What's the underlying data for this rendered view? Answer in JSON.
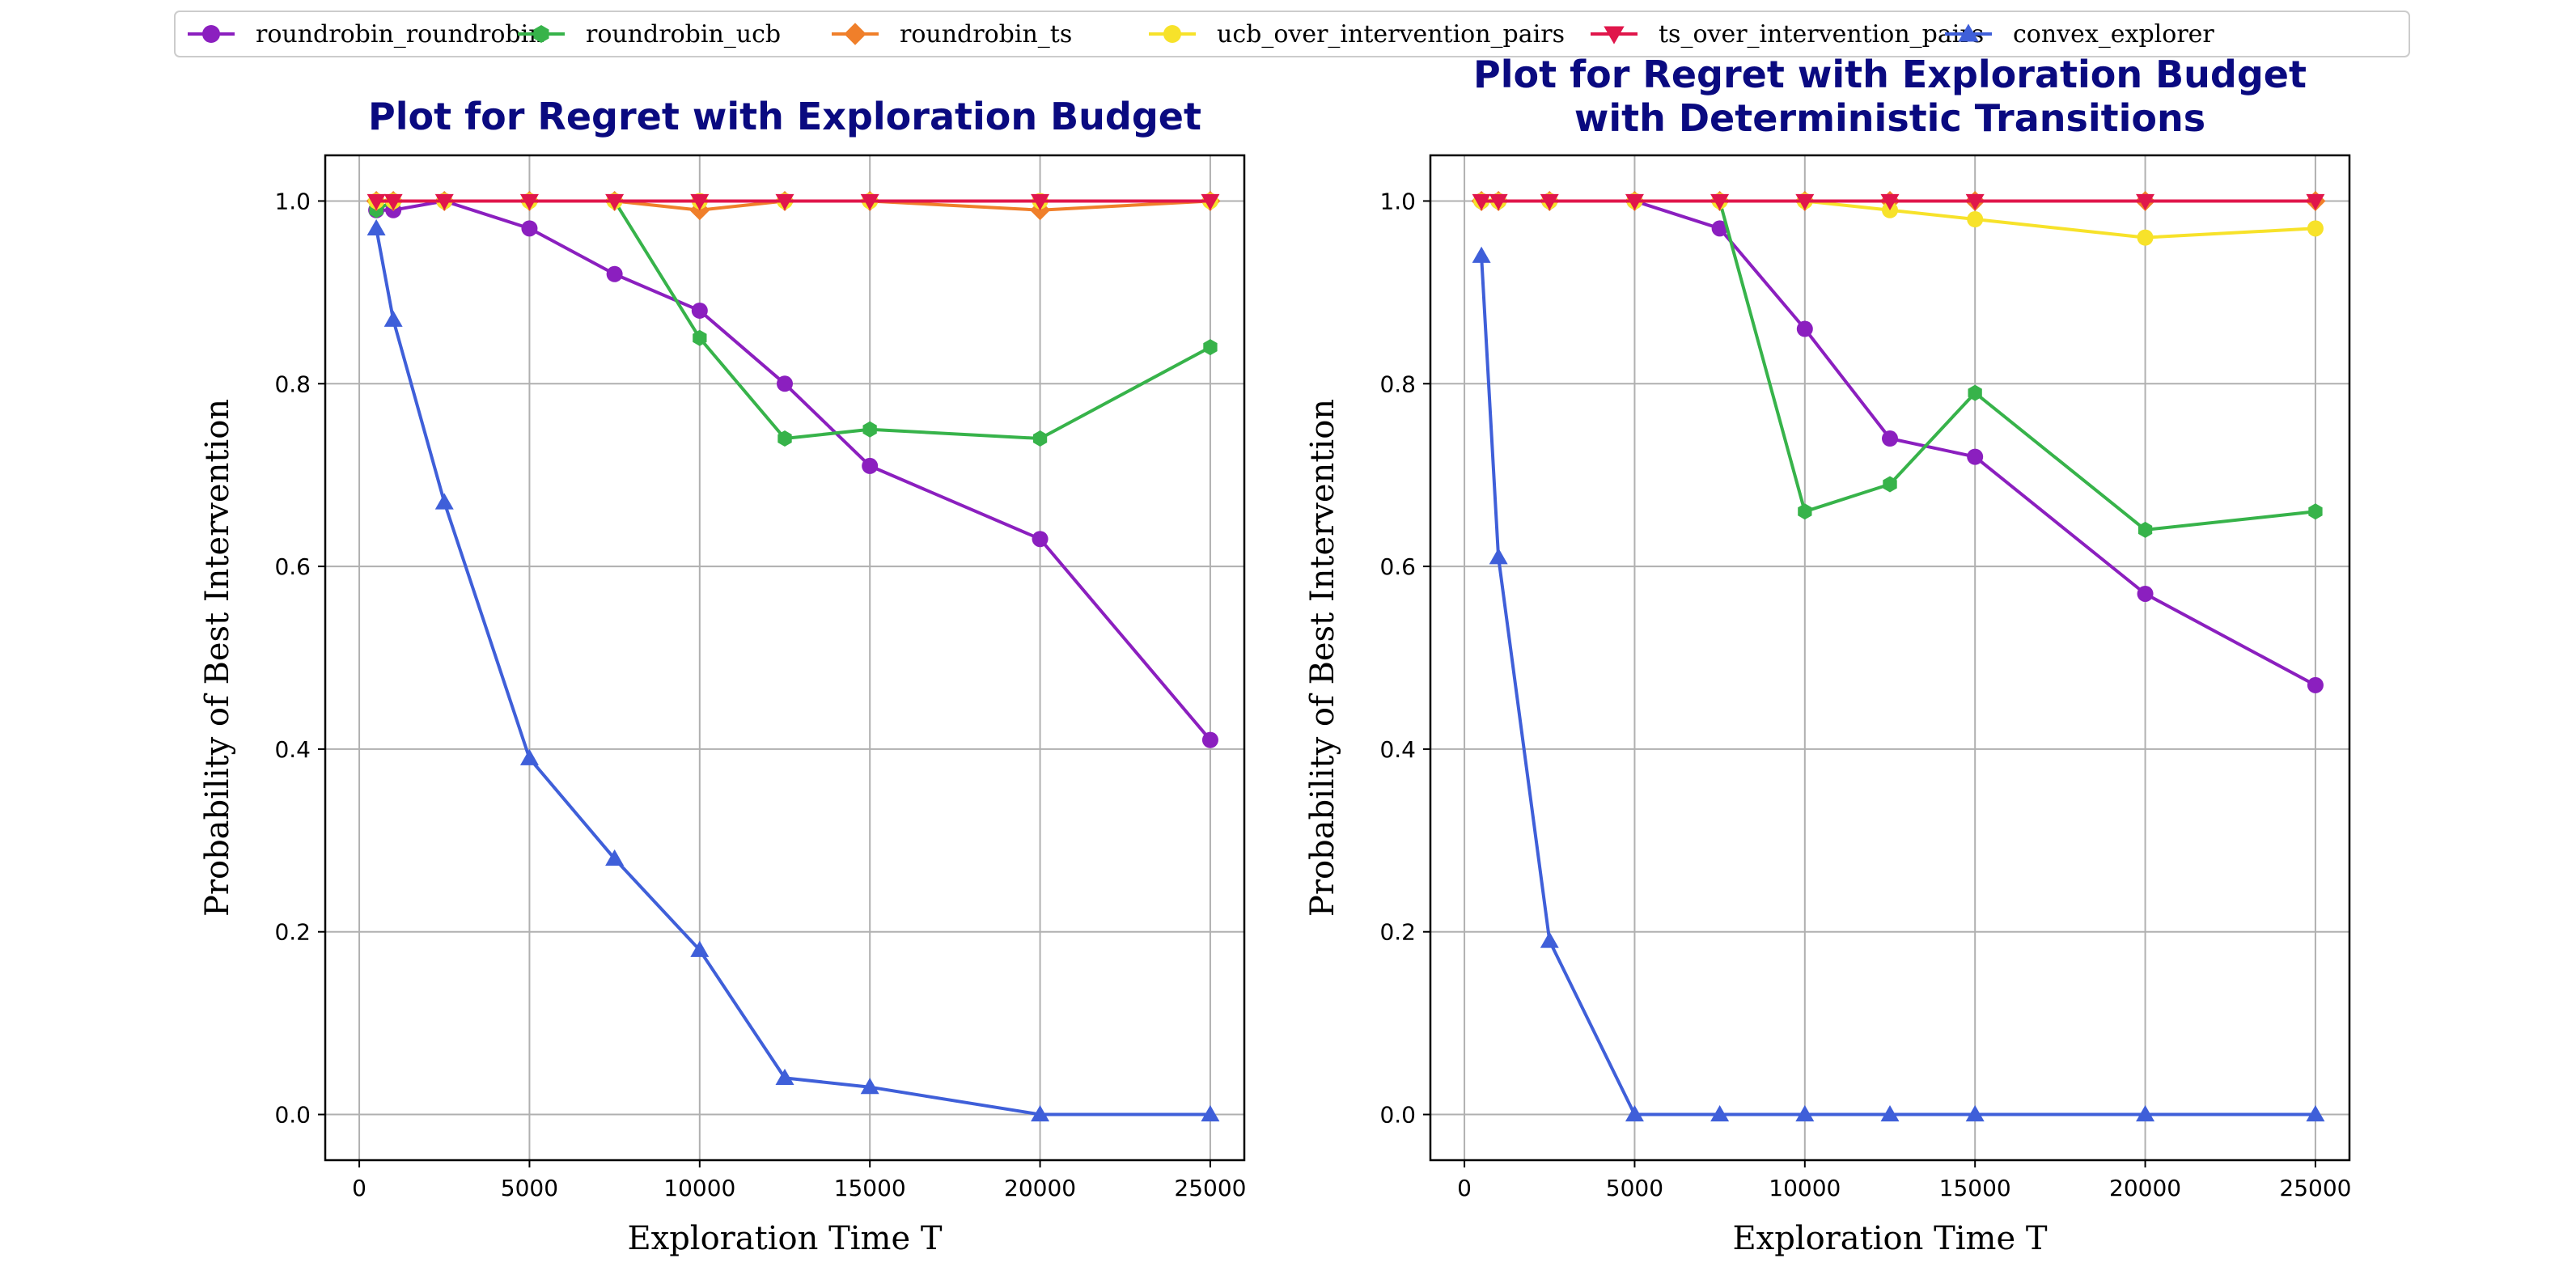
{
  "legend": {
    "placement": "top-center",
    "entries": [
      {
        "name": "roundrobin_roundrobin",
        "color": "#8b1fbf",
        "marker": "circle"
      },
      {
        "name": "roundrobin_ucb",
        "color": "#37b34a",
        "marker": "hexagon"
      },
      {
        "name": "roundrobin_ts",
        "color": "#f07f2a",
        "marker": "diamond"
      },
      {
        "name": "ucb_over_intervention_pairs",
        "color": "#f7e22a",
        "marker": "circle"
      },
      {
        "name": "ts_over_intervention_pairs",
        "color": "#e0164b",
        "marker": "triangle-down"
      },
      {
        "name": "convex_explorer",
        "color": "#3f5fd9",
        "marker": "triangle-up"
      }
    ]
  },
  "chart_data": [
    {
      "type": "line",
      "title": "Plot for Regret with Exploration Budget",
      "xlabel": "Exploration Time T",
      "ylabel": "Probability of Best Intervention",
      "xlim": [
        -1000,
        26000
      ],
      "ylim": [
        -0.05,
        1.05
      ],
      "xticks": [
        0,
        5000,
        10000,
        15000,
        20000,
        25000
      ],
      "yticks": [
        0.0,
        0.2,
        0.4,
        0.6,
        0.8,
        1.0
      ],
      "xtick_labels": [
        "0",
        "5000",
        "10000",
        "15000",
        "20000",
        "25000"
      ],
      "ytick_labels": [
        "0.0",
        "0.2",
        "0.4",
        "0.6",
        "0.8",
        "1.0"
      ],
      "grid": true,
      "x": [
        500,
        1000,
        2500,
        5000,
        7500,
        10000,
        12500,
        15000,
        20000,
        25000
      ],
      "series": [
        {
          "name": "roundrobin_roundrobin",
          "values": [
            0.99,
            0.99,
            1.0,
            0.97,
            0.92,
            0.88,
            0.8,
            0.71,
            0.63,
            0.41
          ]
        },
        {
          "name": "roundrobin_ucb",
          "values": [
            0.99,
            1.0,
            1.0,
            1.0,
            1.0,
            0.85,
            0.74,
            0.75,
            0.74,
            0.84
          ]
        },
        {
          "name": "roundrobin_ts",
          "values": [
            1.0,
            1.0,
            1.0,
            1.0,
            1.0,
            0.99,
            1.0,
            1.0,
            0.99,
            1.0
          ]
        },
        {
          "name": "ucb_over_intervention_pairs",
          "values": [
            1.0,
            1.0,
            1.0,
            1.0,
            1.0,
            1.0,
            1.0,
            1.0,
            1.0,
            1.0
          ]
        },
        {
          "name": "ts_over_intervention_pairs",
          "values": [
            1.0,
            1.0,
            1.0,
            1.0,
            1.0,
            1.0,
            1.0,
            1.0,
            1.0,
            1.0
          ]
        },
        {
          "name": "convex_explorer",
          "values": [
            0.97,
            0.87,
            0.67,
            0.39,
            0.28,
            0.18,
            0.04,
            0.03,
            0.0,
            0.0
          ]
        }
      ]
    },
    {
      "type": "line",
      "title": "Plot for Regret with Exploration Budget\nwith Deterministic Transitions",
      "xlabel": "Exploration Time T",
      "ylabel": "Probability of Best Intervention",
      "xlim": [
        -1000,
        26000
      ],
      "ylim": [
        -0.05,
        1.05
      ],
      "xticks": [
        0,
        5000,
        10000,
        15000,
        20000,
        25000
      ],
      "yticks": [
        0.0,
        0.2,
        0.4,
        0.6,
        0.8,
        1.0
      ],
      "xtick_labels": [
        "0",
        "5000",
        "10000",
        "15000",
        "20000",
        "25000"
      ],
      "ytick_labels": [
        "0.0",
        "0.2",
        "0.4",
        "0.6",
        "0.8",
        "1.0"
      ],
      "grid": true,
      "x": [
        500,
        1000,
        2500,
        5000,
        7500,
        10000,
        12500,
        15000,
        20000,
        25000
      ],
      "series": [
        {
          "name": "roundrobin_roundrobin",
          "values": [
            1.0,
            1.0,
            1.0,
            1.0,
            0.97,
            0.86,
            0.74,
            0.72,
            0.57,
            0.47
          ]
        },
        {
          "name": "roundrobin_ucb",
          "values": [
            1.0,
            1.0,
            1.0,
            1.0,
            1.0,
            0.66,
            0.69,
            0.79,
            0.64,
            0.66
          ]
        },
        {
          "name": "roundrobin_ts",
          "values": [
            1.0,
            1.0,
            1.0,
            1.0,
            1.0,
            1.0,
            1.0,
            1.0,
            1.0,
            1.0
          ]
        },
        {
          "name": "ucb_over_intervention_pairs",
          "values": [
            1.0,
            1.0,
            1.0,
            1.0,
            1.0,
            1.0,
            0.99,
            0.98,
            0.96,
            0.97
          ]
        },
        {
          "name": "ts_over_intervention_pairs",
          "values": [
            1.0,
            1.0,
            1.0,
            1.0,
            1.0,
            1.0,
            1.0,
            1.0,
            1.0,
            1.0
          ]
        },
        {
          "name": "convex_explorer",
          "values": [
            0.94,
            0.61,
            0.19,
            0.0,
            0.0,
            0.0,
            0.0,
            0.0,
            0.0,
            0.0
          ]
        }
      ]
    }
  ]
}
